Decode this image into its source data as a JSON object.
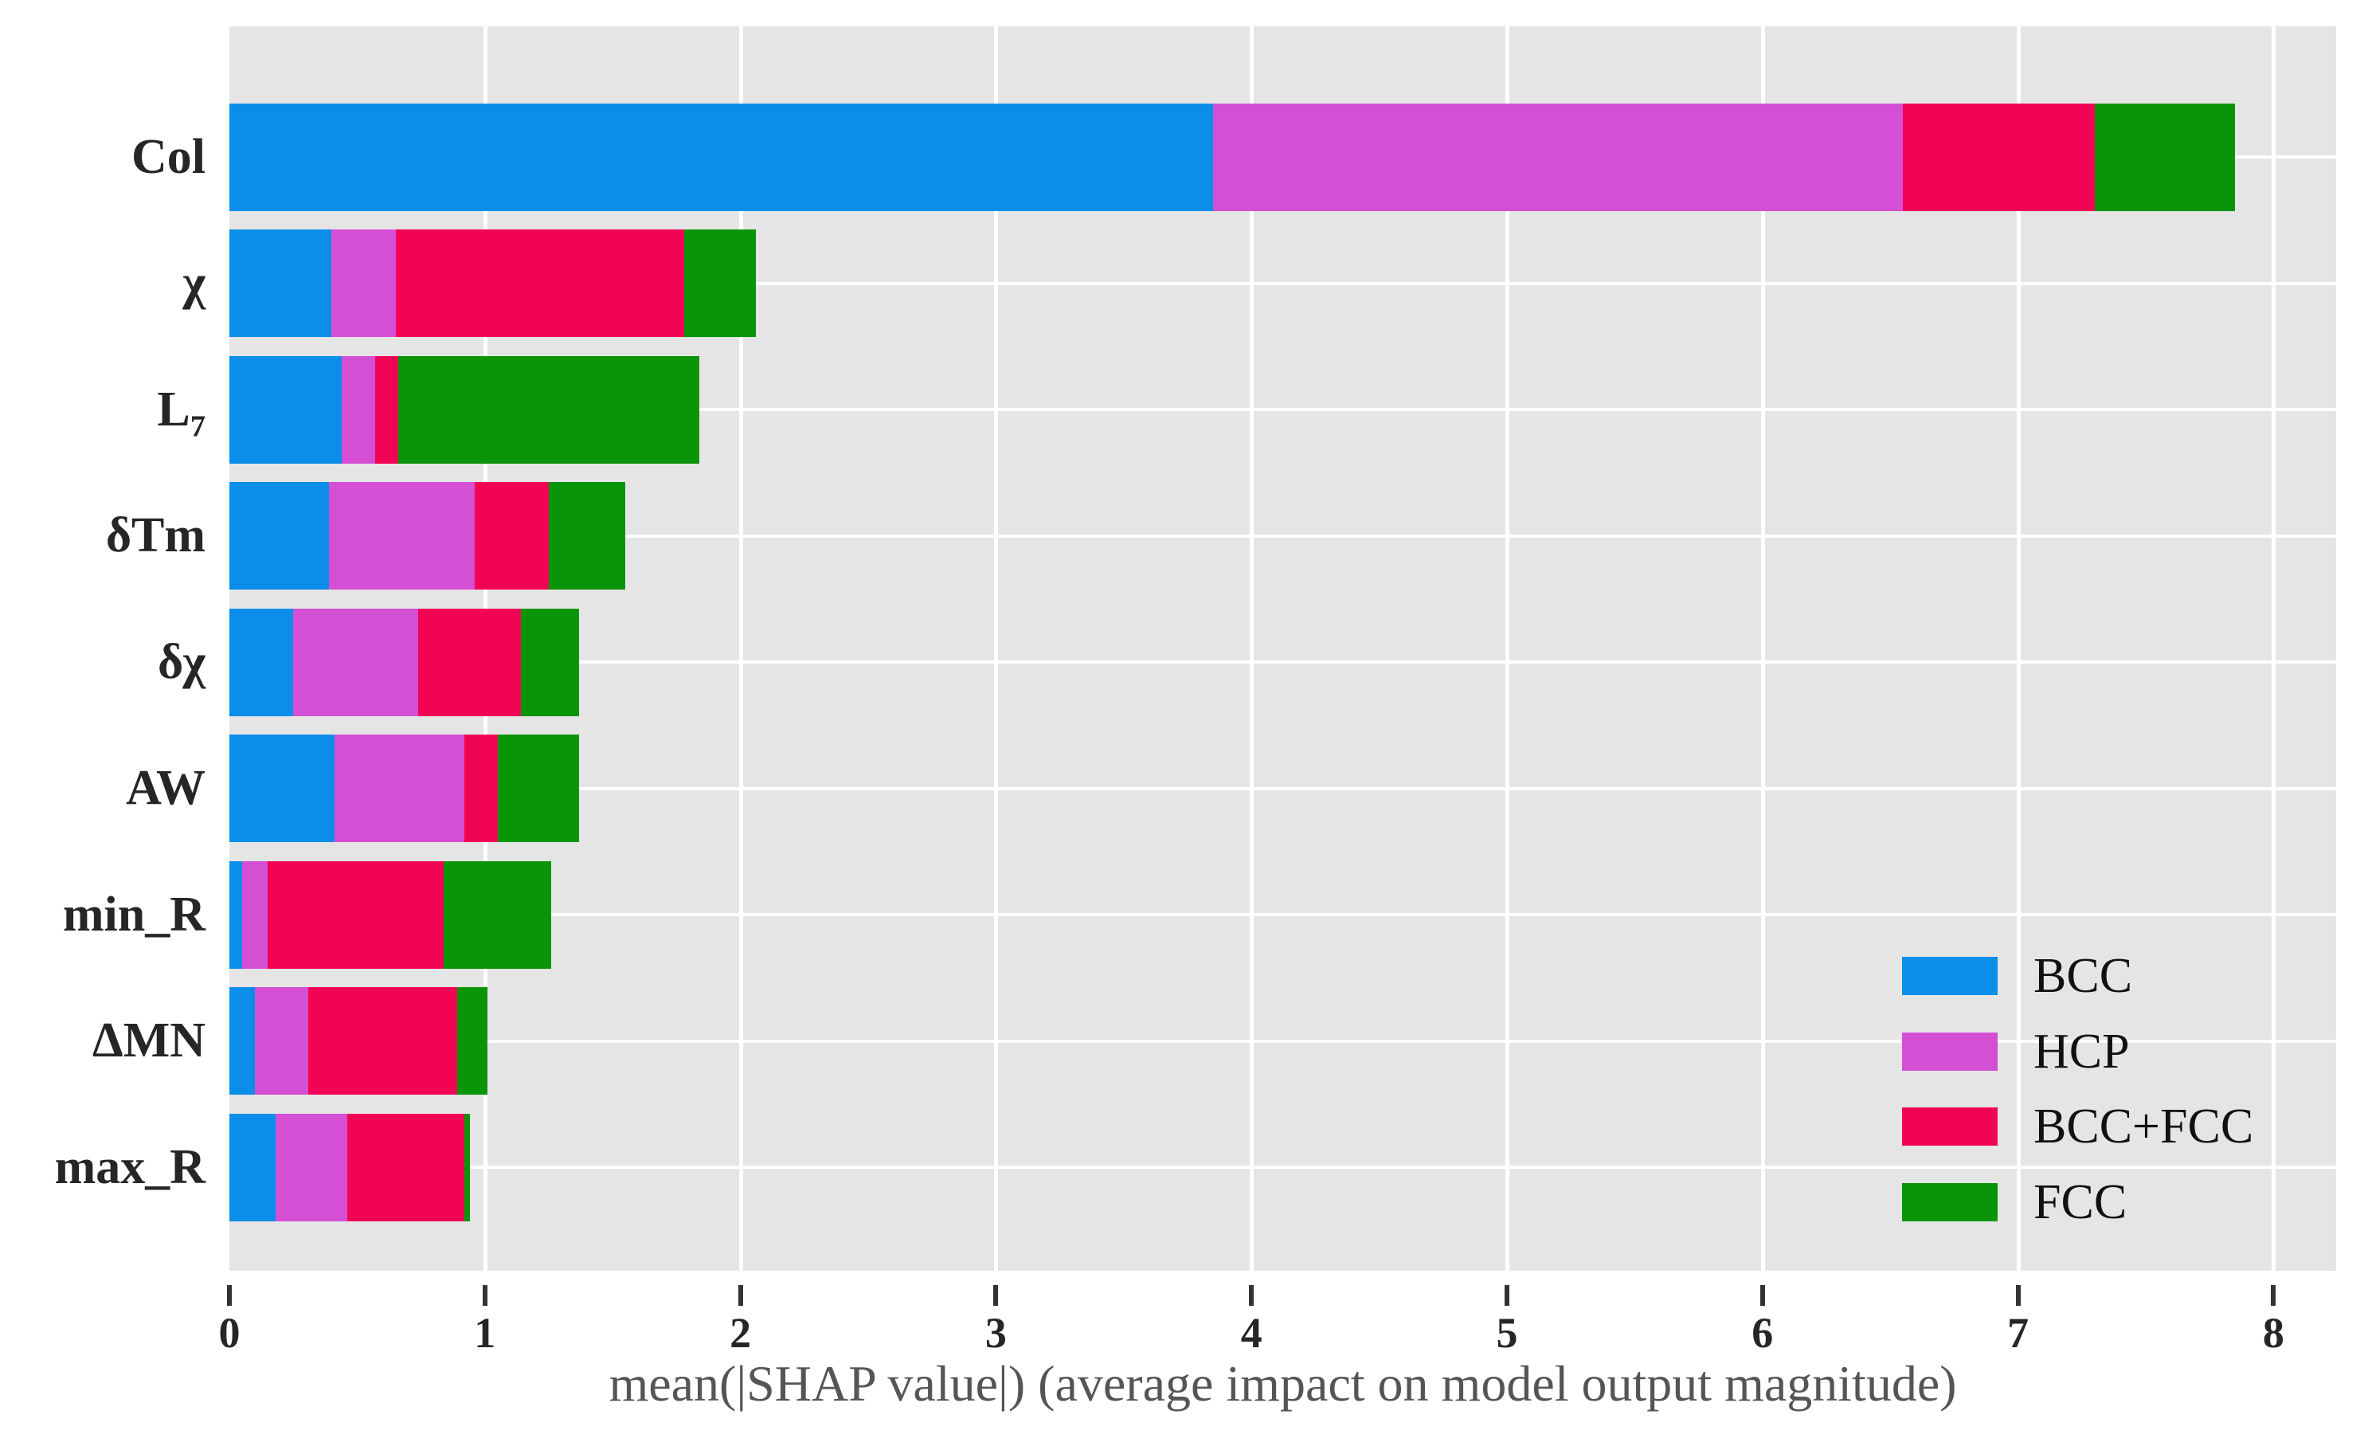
{
  "chart_data": {
    "type": "bar",
    "orientation": "horizontal",
    "stacked": true,
    "title": "",
    "xlabel": "mean(|SHAP value|) (average impact on model output magnitude)",
    "ylabel": "",
    "categories": [
      "Col",
      "χ",
      "L₇",
      "δTm",
      "δχ",
      "AW",
      "min_R",
      "ΔMN",
      "max_R"
    ],
    "series": [
      {
        "name": "BCC",
        "color": "#0b8dea",
        "values": [
          3.85,
          0.4,
          0.44,
          0.39,
          0.25,
          0.41,
          0.05,
          0.1,
          0.18
        ]
      },
      {
        "name": "HCP",
        "color": "#d44fd4",
        "values": [
          2.7,
          0.25,
          0.13,
          0.57,
          0.49,
          0.51,
          0.1,
          0.21,
          0.28
        ]
      },
      {
        "name": "BCC+FCC",
        "color": "#f20455",
        "values": [
          0.75,
          1.13,
          0.09,
          0.29,
          0.4,
          0.13,
          0.69,
          0.58,
          0.46
        ]
      },
      {
        "name": "FCC",
        "color": "#0a9408",
        "values": [
          0.55,
          0.28,
          1.18,
          0.3,
          0.23,
          0.32,
          0.42,
          0.12,
          0.02
        ]
      }
    ],
    "totals": [
      7.85,
      2.06,
      1.84,
      1.55,
      1.37,
      1.37,
      1.26,
      1.01,
      0.94
    ],
    "x_ticks": [
      0,
      1,
      2,
      3,
      4,
      5,
      6,
      7,
      8
    ],
    "xlim": [
      0,
      8.25
    ],
    "grid": true,
    "plot_background": "#e5e5e5",
    "gridline_color": "#ffffff",
    "legend": {
      "position": "lower right",
      "entries": [
        {
          "label": "BCC",
          "color": "#0b8dea"
        },
        {
          "label": "HCP",
          "color": "#d44fd4"
        },
        {
          "label": "BCC+FCC",
          "color": "#f20455"
        },
        {
          "label": "FCC",
          "color": "#0a9408"
        }
      ]
    }
  }
}
